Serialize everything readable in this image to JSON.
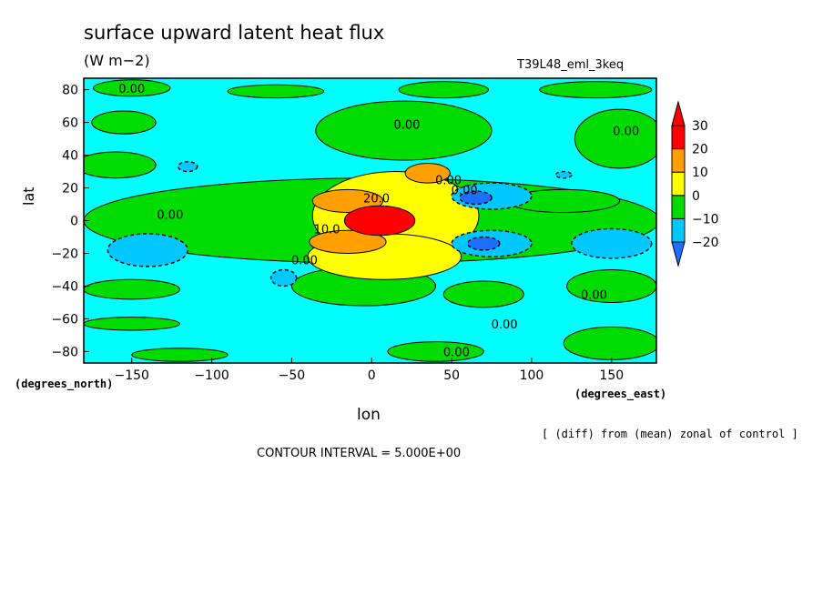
{
  "header": {
    "title": "surface upward latent heat flux",
    "units": "(W m−2)",
    "run_name": "T39L48_eml_3keq"
  },
  "footer": {
    "degrees_north": "(degrees_north)",
    "degrees_east": "(degrees_east)",
    "note": "[ (diff) from (mean) zonal of control ]",
    "contour_interval": "CONTOUR INTERVAL = 5.000E+00"
  },
  "chart_data": {
    "type": "heatmap",
    "title": "surface upward latent heat flux",
    "units": "(W m−2)",
    "xlabel": "lon",
    "ylabel": "lat",
    "xlim": [
      -180,
      178
    ],
    "ylim": [
      -87,
      87
    ],
    "xticks": [
      -150,
      -100,
      -50,
      0,
      50,
      100,
      150
    ],
    "yticks": [
      80,
      60,
      40,
      20,
      0,
      -20,
      -40,
      -60,
      -80
    ],
    "colorbar": {
      "levels": [
        -25,
        -20,
        -10,
        0,
        10,
        20,
        30,
        35
      ],
      "tick_labels": [
        "30",
        "20",
        "10",
        "0",
        "−10",
        "−20"
      ],
      "tick_values": [
        30,
        20,
        10,
        0,
        -10,
        -20
      ],
      "colors": [
        "#1e6eff",
        "#00c8ff",
        "#00dc00",
        "#ffff00",
        "#ffa000",
        "#ff0000"
      ]
    },
    "background_color": "#00ffff",
    "contour_labels": [
      {
        "text": "0.00",
        "lon": -150,
        "lat": 81
      },
      {
        "text": "0.00",
        "lon": 22,
        "lat": 59
      },
      {
        "text": "0.00",
        "lon": 159,
        "lat": 55
      },
      {
        "text": "0.00",
        "lon": 48,
        "lat": 25
      },
      {
        "text": "0.00",
        "lon": 58,
        "lat": 19
      },
      {
        "text": "20.0",
        "lon": 3,
        "lat": 14
      },
      {
        "text": "0.00",
        "lon": -126,
        "lat": 4
      },
      {
        "text": "10.0",
        "lon": -28,
        "lat": -5
      },
      {
        "text": "0.00",
        "lon": -42,
        "lat": -24
      },
      {
        "text": "0.00",
        "lon": 139,
        "lat": -45
      },
      {
        "text": "0.00",
        "lon": 83,
        "lat": -63
      },
      {
        "text": "0.00",
        "lon": 53,
        "lat": -80
      }
    ],
    "regions": [
      {
        "level": 0,
        "lon": 0,
        "lat": 0,
        "rx": 180,
        "ry": 26
      },
      {
        "level": 0,
        "lon": -150,
        "lat": 81,
        "rx": 24,
        "ry": 5
      },
      {
        "level": 0,
        "lon": -60,
        "lat": 79,
        "rx": 30,
        "ry": 4
      },
      {
        "level": 0,
        "lon": 45,
        "lat": 80,
        "rx": 28,
        "ry": 5
      },
      {
        "level": 0,
        "lon": 140,
        "lat": 80,
        "rx": 35,
        "ry": 5
      },
      {
        "level": 0,
        "lon": -155,
        "lat": 60,
        "rx": 20,
        "ry": 7
      },
      {
        "level": 0,
        "lon": 20,
        "lat": 55,
        "rx": 55,
        "ry": 18
      },
      {
        "level": 0,
        "lon": 155,
        "lat": 50,
        "rx": 28,
        "ry": 18
      },
      {
        "level": 0,
        "lon": -160,
        "lat": 34,
        "rx": 25,
        "ry": 8
      },
      {
        "level": 0,
        "lon": 120,
        "lat": 12,
        "rx": 35,
        "ry": 7
      },
      {
        "level": 0,
        "lon": -5,
        "lat": -40,
        "rx": 45,
        "ry": 12
      },
      {
        "level": 0,
        "lon": -150,
        "lat": -42,
        "rx": 30,
        "ry": 6
      },
      {
        "level": 0,
        "lon": 150,
        "lat": -40,
        "rx": 28,
        "ry": 10
      },
      {
        "level": 0,
        "lon": 70,
        "lat": -45,
        "rx": 25,
        "ry": 8
      },
      {
        "level": 0,
        "lon": -150,
        "lat": -63,
        "rx": 30,
        "ry": 4
      },
      {
        "level": 0,
        "lon": 150,
        "lat": -75,
        "rx": 30,
        "ry": 10
      },
      {
        "level": 0,
        "lon": 40,
        "lat": -80,
        "rx": 30,
        "ry": 6
      },
      {
        "level": 0,
        "lon": -120,
        "lat": -82,
        "rx": 30,
        "ry": 4
      },
      {
        "level": 1,
        "lon": 15,
        "lat": 3,
        "rx": 52,
        "ry": 27
      },
      {
        "level": 1,
        "lon": 8,
        "lat": -22,
        "rx": 48,
        "ry": 14
      },
      {
        "level": 2,
        "lon": -15,
        "lat": 12,
        "rx": 22,
        "ry": 7
      },
      {
        "level": 2,
        "lon": -15,
        "lat": -13,
        "rx": 24,
        "ry": 7
      },
      {
        "level": 2,
        "lon": 35,
        "lat": 29,
        "rx": 14,
        "ry": 6
      },
      {
        "level": 3,
        "lon": 5,
        "lat": 0,
        "rx": 22,
        "ry": 9
      },
      {
        "level": -1,
        "lon": 75,
        "lat": -14,
        "rx": 25,
        "ry": 8
      },
      {
        "level": -1,
        "lon": 75,
        "lat": 15,
        "rx": 25,
        "ry": 8
      },
      {
        "level": -1,
        "lon": 150,
        "lat": -14,
        "rx": 25,
        "ry": 9
      },
      {
        "level": -1,
        "lon": -140,
        "lat": -18,
        "rx": 25,
        "ry": 10
      },
      {
        "level": -1,
        "lon": -115,
        "lat": 33,
        "rx": 6,
        "ry": 3
      },
      {
        "level": -1,
        "lon": -55,
        "lat": -35,
        "rx": 8,
        "ry": 5
      },
      {
        "level": -1,
        "lon": 120,
        "lat": 28,
        "rx": 5,
        "ry": 2
      },
      {
        "level": -2,
        "lon": 70,
        "lat": -14,
        "rx": 10,
        "ry": 4
      },
      {
        "level": -2,
        "lon": 65,
        "lat": 14,
        "rx": 10,
        "ry": 4
      }
    ]
  }
}
